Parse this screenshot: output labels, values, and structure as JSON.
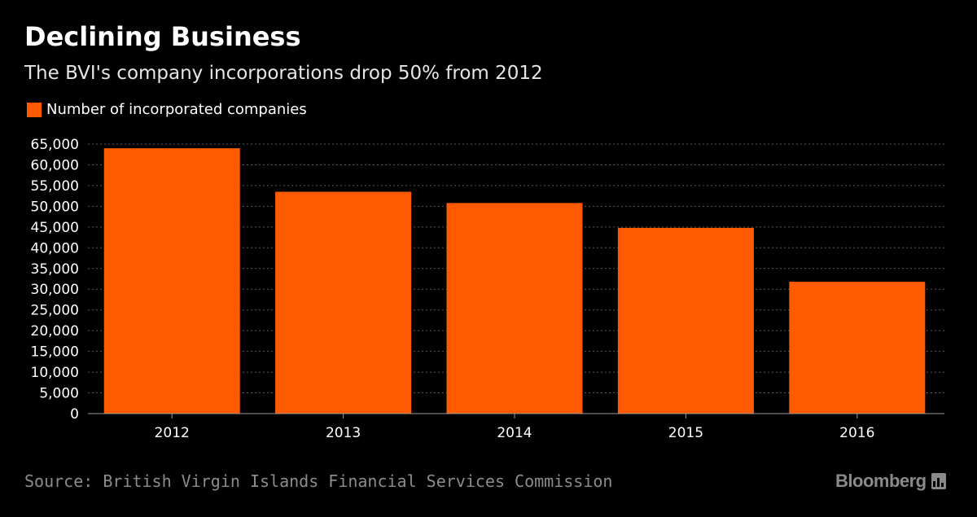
{
  "header": {
    "title": "Declining Business",
    "subtitle": "The BVI's company incorporations drop 50% from 2012"
  },
  "legend": {
    "label": "Number of incorporated companies",
    "color": "#ff5a00"
  },
  "footer": {
    "source": "Source: British Virgin Islands Financial Services Commission",
    "brand": "Bloomberg",
    "brand_icon": "bloomberg-terminal-icon"
  },
  "colors": {
    "background": "#000000",
    "bar": "#ff5a00",
    "grid": "#5a5a5a",
    "axis_text": "#ffffff"
  },
  "chart_data": {
    "type": "bar",
    "categories": [
      "2012",
      "2013",
      "2014",
      "2015",
      "2016"
    ],
    "series": [
      {
        "name": "Number of incorporated companies",
        "values": [
          64000,
          53500,
          50800,
          44800,
          31800
        ]
      }
    ],
    "yticks": [
      "0",
      "5,000",
      "10,000",
      "15,000",
      "20,000",
      "25,000",
      "30,000",
      "35,000",
      "40,000",
      "45,000",
      "50,000",
      "55,000",
      "60,000",
      "65,000"
    ],
    "ylim": [
      0,
      65000
    ],
    "grid": true,
    "legend_position": "top-left"
  }
}
